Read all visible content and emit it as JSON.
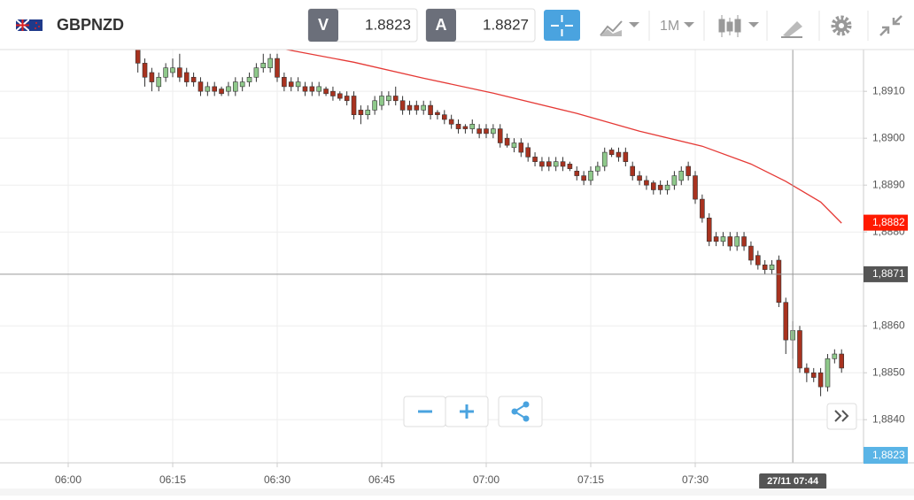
{
  "toolbar": {
    "symbol": "GBPNZD",
    "sell_label": "V",
    "sell_price": "1.8823",
    "buy_label": "A",
    "buy_price": "1.8827",
    "timeframe": "1M"
  },
  "chart_data": {
    "type": "candlestick",
    "x": [
      "06:10",
      "06:11",
      "06:12",
      "06:13",
      "06:14",
      "06:15",
      "06:16",
      "06:17",
      "06:18",
      "06:19",
      "06:20",
      "06:21",
      "06:22",
      "06:23",
      "06:24",
      "06:25",
      "06:26",
      "06:27",
      "06:28",
      "06:29",
      "06:30",
      "06:31",
      "06:32",
      "06:33",
      "06:34",
      "06:35",
      "06:36",
      "06:37",
      "06:38",
      "06:39",
      "06:40",
      "06:41",
      "06:42",
      "06:43",
      "06:44",
      "06:45",
      "06:46",
      "06:47",
      "06:48",
      "06:49",
      "06:50",
      "06:51",
      "06:52",
      "06:53",
      "06:54",
      "06:55",
      "06:56",
      "06:57",
      "06:58",
      "06:59",
      "07:00",
      "07:01",
      "07:02",
      "07:03",
      "07:04",
      "07:05",
      "07:06",
      "07:07",
      "07:08",
      "07:09",
      "07:10",
      "07:11",
      "07:12",
      "07:13",
      "07:14",
      "07:15",
      "07:16",
      "07:17",
      "07:18",
      "07:19",
      "07:20",
      "07:21",
      "07:22",
      "07:23",
      "07:24",
      "07:25",
      "07:26",
      "07:27",
      "07:28",
      "07:29",
      "07:30",
      "07:31",
      "07:32",
      "07:33",
      "07:34",
      "07:35",
      "07:36",
      "07:37",
      "07:38",
      "07:39",
      "07:40",
      "07:41",
      "07:42",
      "07:43",
      "07:44",
      "07:45",
      "07:46",
      "07:47",
      "07:48",
      "07:49",
      "07:50",
      "07:51"
    ],
    "open": [
      1.8919,
      1.8916,
      1.8914,
      1.8911,
      1.8913,
      1.8914,
      1.8915,
      1.8914,
      1.8913,
      1.8912,
      1.891,
      1.8911,
      1.89105,
      1.891,
      1.891,
      1.8911,
      1.8912,
      1.8913,
      1.8915,
      1.8915,
      1.8917,
      1.8913,
      1.8912,
      1.8911,
      1.8911,
      1.8911,
      1.891,
      1.89105,
      1.891,
      1.89095,
      1.8909,
      1.8909,
      1.8906,
      1.8905,
      1.8906,
      1.8907,
      1.8908,
      1.8909,
      1.8908,
      1.8907,
      1.8907,
      1.8906,
      1.8907,
      1.89055,
      1.8905,
      1.8904,
      1.8903,
      1.89025,
      1.8902,
      1.8902,
      1.8902,
      1.8901,
      1.8902,
      1.89,
      1.8898,
      1.8899,
      1.8898,
      1.8896,
      1.8895,
      1.8895,
      1.8894,
      1.8895,
      1.88945,
      1.8893,
      1.8892,
      1.8891,
      1.8893,
      1.8894,
      1.88975,
      1.8897,
      1.8897,
      1.8894,
      1.8892,
      1.8891,
      1.88905,
      1.889,
      1.8889,
      1.889,
      1.8891,
      1.8894,
      1.8892,
      1.8887,
      1.8883,
      1.8879,
      1.8878,
      1.8879,
      1.8877,
      1.8879,
      1.8877,
      1.8875,
      1.8873,
      1.8872,
      1.8874,
      1.8865,
      1.8857,
      1.8859,
      1.8851,
      1.885,
      1.885,
      1.8847,
      1.8853,
      1.8854
    ],
    "high": [
      1.892,
      1.8917,
      1.8915,
      1.8914,
      1.8916,
      1.8917,
      1.8918,
      1.8915,
      1.8914,
      1.8913,
      1.8912,
      1.8912,
      1.8911,
      1.8912,
      1.8913,
      1.8913,
      1.8914,
      1.8916,
      1.8918,
      1.8918,
      1.8918,
      1.8914,
      1.8913,
      1.8913,
      1.8912,
      1.8912,
      1.8912,
      1.8911,
      1.8911,
      1.891,
      1.891,
      1.891,
      1.8907,
      1.8907,
      1.8909,
      1.891,
      1.891,
      1.8911,
      1.8909,
      1.8908,
      1.8908,
      1.8908,
      1.8908,
      1.8906,
      1.8906,
      1.8905,
      1.8904,
      1.8903,
      1.8904,
      1.8903,
      1.8903,
      1.8903,
      1.8903,
      1.8901,
      1.89,
      1.89,
      1.8899,
      1.8897,
      1.8896,
      1.8896,
      1.8896,
      1.8896,
      1.8895,
      1.8894,
      1.8893,
      1.8894,
      1.8895,
      1.8898,
      1.8898,
      1.8898,
      1.8898,
      1.8895,
      1.8893,
      1.8892,
      1.8891,
      1.8891,
      1.8891,
      1.8893,
      1.8894,
      1.8895,
      1.8893,
      1.8888,
      1.8884,
      1.888,
      1.888,
      1.888,
      1.888,
      1.888,
      1.8878,
      1.8876,
      1.8874,
      1.8874,
      1.8875,
      1.8866,
      1.8861,
      1.886,
      1.8852,
      1.8851,
      1.8851,
      1.8854,
      1.8855,
      1.8855
    ],
    "low": [
      1.8914,
      1.8911,
      1.891,
      1.891,
      1.8912,
      1.8913,
      1.8912,
      1.8911,
      1.8911,
      1.8909,
      1.8909,
      1.8909,
      1.8909,
      1.8909,
      1.8909,
      1.891,
      1.8911,
      1.8912,
      1.8914,
      1.8914,
      1.8912,
      1.891,
      1.891,
      1.891,
      1.8909,
      1.8909,
      1.8909,
      1.8909,
      1.8908,
      1.8908,
      1.8907,
      1.8904,
      1.8903,
      1.8904,
      1.8905,
      1.8906,
      1.8907,
      1.8907,
      1.8905,
      1.8905,
      1.8905,
      1.8905,
      1.8904,
      1.8904,
      1.8903,
      1.8902,
      1.8901,
      1.8901,
      1.8901,
      1.89,
      1.89,
      1.89,
      1.8898,
      1.8898,
      1.8897,
      1.8896,
      1.8895,
      1.8894,
      1.8893,
      1.8893,
      1.8893,
      1.8893,
      1.8893,
      1.8891,
      1.889,
      1.889,
      1.8892,
      1.8893,
      1.8896,
      1.8895,
      1.8894,
      1.8891,
      1.889,
      1.8889,
      1.8888,
      1.8888,
      1.8888,
      1.8889,
      1.889,
      1.8891,
      1.8886,
      1.8882,
      1.8877,
      1.8877,
      1.8877,
      1.8876,
      1.8876,
      1.8876,
      1.8873,
      1.8872,
      1.8871,
      1.8871,
      1.8864,
      1.8854,
      1.8853,
      1.885,
      1.8848,
      1.8848,
      1.8845,
      1.8846,
      1.8852,
      1.885
    ],
    "close": [
      1.8916,
      1.8913,
      1.8912,
      1.8913,
      1.8915,
      1.8915,
      1.8913,
      1.8912,
      1.8912,
      1.891,
      1.8911,
      1.891,
      1.89095,
      1.8911,
      1.8912,
      1.8912,
      1.8913,
      1.8915,
      1.8916,
      1.8917,
      1.8913,
      1.8911,
      1.8911,
      1.8912,
      1.891,
      1.891,
      1.8911,
      1.89095,
      1.8909,
      1.89085,
      1.8908,
      1.8905,
      1.8905,
      1.8906,
      1.8908,
      1.8909,
      1.8909,
      1.8908,
      1.8906,
      1.8906,
      1.8906,
      1.8907,
      1.8905,
      1.8905,
      1.8904,
      1.8903,
      1.8902,
      1.8902,
      1.8903,
      1.8901,
      1.8901,
      1.8902,
      1.8899,
      1.88985,
      1.8899,
      1.8897,
      1.8896,
      1.8895,
      1.8894,
      1.8894,
      1.8895,
      1.8894,
      1.88935,
      1.8892,
      1.8891,
      1.8893,
      1.8894,
      1.8897,
      1.88965,
      1.8896,
      1.8895,
      1.8892,
      1.8891,
      1.889,
      1.8889,
      1.8889,
      1.889,
      1.8892,
      1.8893,
      1.8892,
      1.8887,
      1.8883,
      1.8878,
      1.8878,
      1.8879,
      1.8877,
      1.8879,
      1.8877,
      1.8874,
      1.8873,
      1.8872,
      1.8873,
      1.8865,
      1.8857,
      1.8859,
      1.8851,
      1.885,
      1.8849,
      1.8847,
      1.8853,
      1.8854,
      1.8851
    ],
    "up_color": "#8fc98b",
    "down_color": "#a8321f",
    "moving_average": {
      "color": "#e53935",
      "x": [
        "06:31",
        "06:41",
        "06:51",
        "07:01",
        "07:13",
        "07:22",
        "07:31",
        "07:38",
        "07:43",
        "07:48",
        "07:51"
      ],
      "values": [
        1.8919,
        1.89162,
        1.89128,
        1.89096,
        1.89053,
        1.89015,
        1.88983,
        1.88945,
        1.88908,
        1.88864,
        1.88819
      ]
    },
    "xticks": [
      "06:00",
      "06:15",
      "06:30",
      "06:45",
      "07:00",
      "07:15",
      "07:30"
    ],
    "ylim": [
      1.88308,
      1.89189
    ],
    "yticks": [
      {
        "value": 1.884,
        "label": "1,8840"
      },
      {
        "value": 1.885,
        "label": "1,8850"
      },
      {
        "value": 1.886,
        "label": "1,8860"
      },
      {
        "value": 1.888,
        "label": "1,8880"
      },
      {
        "value": 1.889,
        "label": "1,8890"
      },
      {
        "value": 1.89,
        "label": "1,8900"
      },
      {
        "value": 1.891,
        "label": "1,8910"
      }
    ],
    "grid": true,
    "price_tag": {
      "value": 1.8882,
      "label": "1,8882",
      "color": "#ff1a00"
    },
    "crosshair": {
      "x": "07:44",
      "y": {
        "value": 1.8871,
        "label": "1,8871"
      },
      "time_label": "27/11 07:44"
    },
    "bid_tag": {
      "label": "1,8823",
      "color": "#5ab4e6"
    }
  }
}
